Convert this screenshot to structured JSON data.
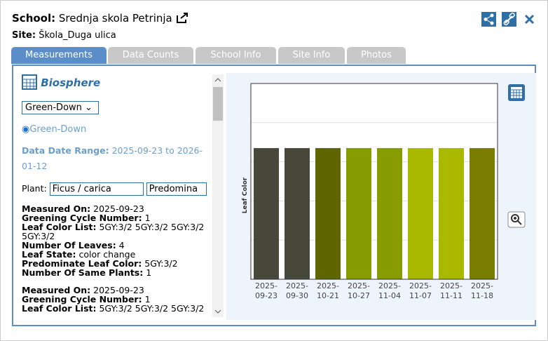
{
  "header": {
    "school_label": "School:",
    "school": "Srednja skola Petrinja",
    "site_label": "Site:",
    "site": "Škola_Duga ulica"
  },
  "tabs": [
    "Measurements",
    "Data Counts",
    "School Info",
    "Site Info",
    "Photos"
  ],
  "panel": {
    "title": "Biosphere",
    "select": "Green-Down",
    "radio": "Green-Down",
    "range_label": "Data Date Range:",
    "range": "2025-09-23 to 2026-01-12",
    "plant_label": "Plant:",
    "plant_select": "Ficus / carica",
    "plant_select2": "Predomina",
    "records": [
      [
        {
          "label": "Measured On:",
          "value": "2025-09-23"
        },
        {
          "label": "Greening Cycle Number:",
          "value": "1"
        },
        {
          "label": "Leaf Color List:",
          "value": "5GY:3/2 5GY:3/2 5GY:3/2 5GY:3/2"
        },
        {
          "label": "Number Of Leaves:",
          "value": "4"
        },
        {
          "label": "Leaf State:",
          "value": "color change"
        },
        {
          "label": "Predominate Leaf Color:",
          "value": "5GY:3/2"
        },
        {
          "label": "Number Of Same Plants:",
          "value": "1"
        }
      ],
      [
        {
          "label": "Measured On:",
          "value": "2025-09-23"
        },
        {
          "label": "Greening Cycle Number:",
          "value": "1"
        },
        {
          "label": "Leaf Color List:",
          "value": "5GY:3/2 5GY:3/2 5GY:3/2"
        }
      ]
    ]
  },
  "chart": {
    "type": "bar",
    "ylabel": "Leaf Color",
    "categories": [
      "2025-09-23",
      "2025-09-30",
      "2025-10-21",
      "2025-10-27",
      "2025-11-04",
      "2025-11-07",
      "2025-11-11",
      "2025-11-18"
    ],
    "values": [
      3.35,
      3.35,
      3.35,
      3.35,
      3.35,
      3.35,
      3.35,
      3.35
    ],
    "colors": [
      "#47483a",
      "#47483a",
      "#5f6500",
      "#869c00",
      "#869c00",
      "#a8b900",
      "#a8b900",
      "#7a7e00"
    ],
    "ylim": [
      0,
      5
    ],
    "yticks": [
      1,
      2,
      3,
      4
    ],
    "grid": true
  }
}
